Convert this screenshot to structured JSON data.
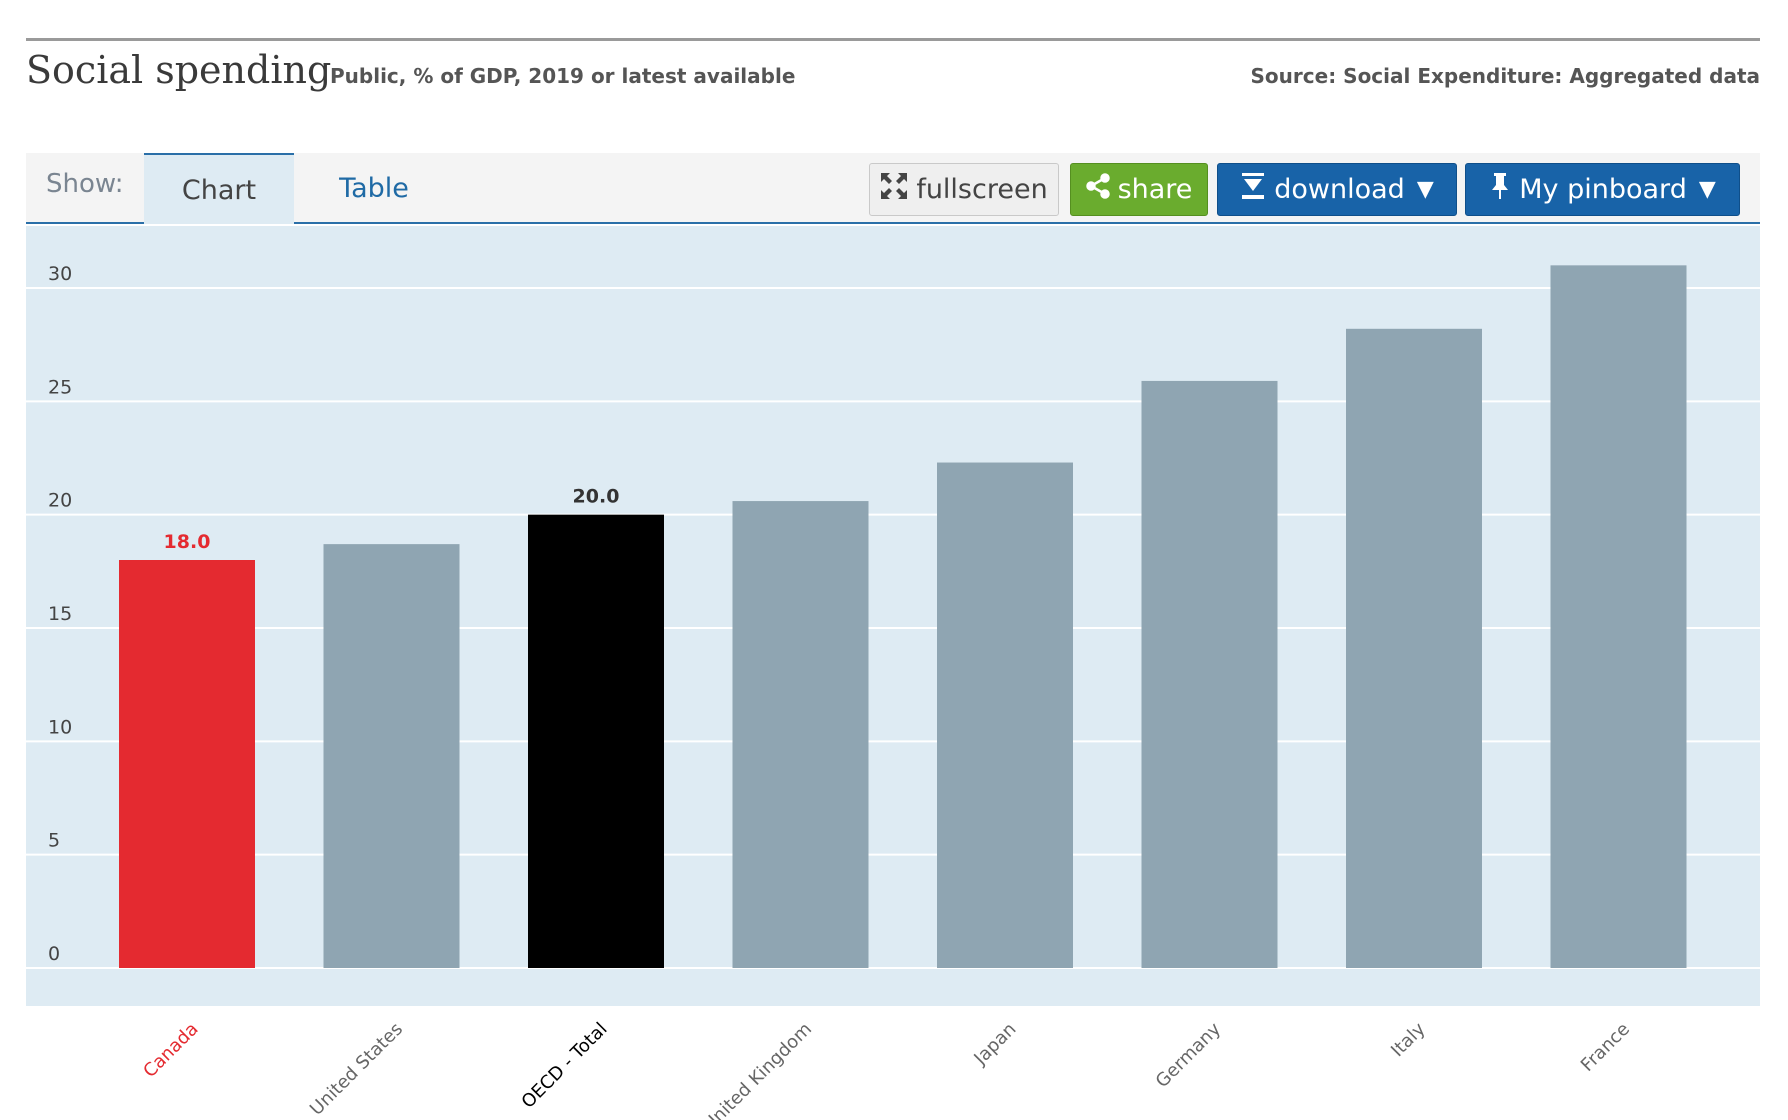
{
  "header": {
    "title": "Social spending",
    "subtitle": "Public, % of GDP, 2019 or latest available",
    "source": "Source: Social Expenditure: Aggregated data"
  },
  "toolbar": {
    "show_label": "Show:",
    "tabs": [
      {
        "label": "Chart",
        "active": true
      },
      {
        "label": "Table",
        "active": false
      }
    ],
    "buttons": {
      "fullscreen": "fullscreen",
      "share": "share",
      "download": "download",
      "pinboard": "My pinboard"
    },
    "icons": [
      "fullscreen-icon",
      "share-icon",
      "download-icon",
      "pin-icon",
      "caret-down-icon"
    ]
  },
  "colors": {
    "default_bar": "#8fa5b2",
    "highlight": "#e42a30",
    "reference": "#000000",
    "plot_background": "#deebf3",
    "share_button": "#6aac2e",
    "primary_button": "#1863a8"
  },
  "chart_data": {
    "type": "bar",
    "categories": [
      "Canada",
      "United States",
      "OECD - Total",
      "United Kingdom",
      "Japan",
      "Germany",
      "Italy",
      "France"
    ],
    "values": [
      18.0,
      18.7,
      20.0,
      20.6,
      22.3,
      25.9,
      28.2,
      31.0
    ],
    "highlight": {
      "Canada": "highlight",
      "OECD - Total": "reference"
    },
    "data_labels": {
      "Canada": "18.0",
      "OECD - Total": "20.0"
    },
    "yticks": [
      "0",
      "5",
      "10",
      "15",
      "20",
      "25",
      "30"
    ],
    "ytick_values": [
      0,
      5,
      10,
      15,
      20,
      25,
      30
    ],
    "ylim": [
      0,
      31.5
    ],
    "grid": true,
    "legend": "none"
  }
}
